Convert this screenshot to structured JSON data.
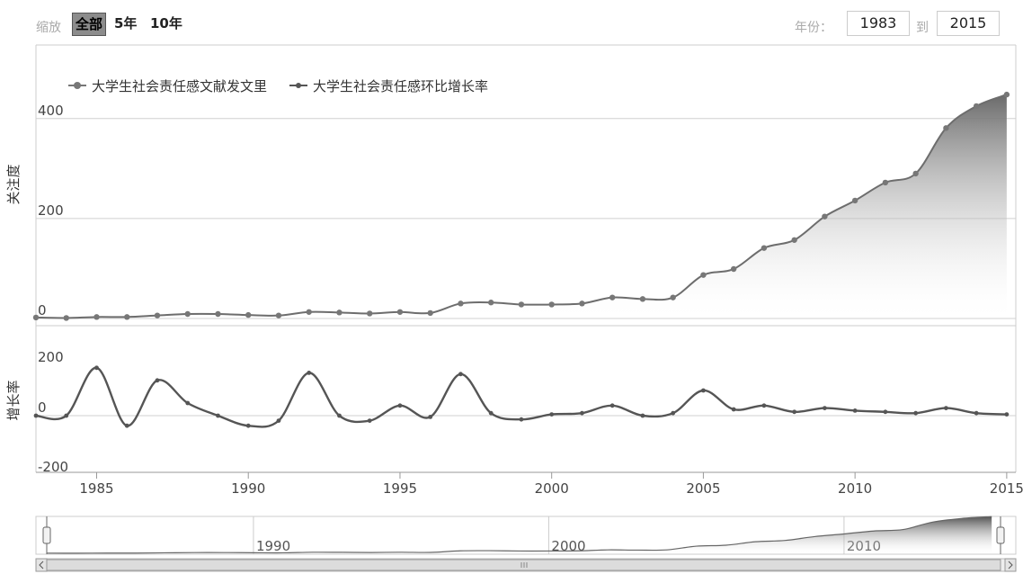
{
  "toolbar": {
    "zoom_label": "缩放",
    "zoom_options": [
      "全部",
      "5年",
      "10年"
    ],
    "range_label": "年份：",
    "range_from": "1983",
    "range_to_label": "到",
    "range_to": "2015"
  },
  "navigator": {
    "tick_labels": [
      "1990",
      "2000",
      "2010"
    ]
  },
  "chart_data": [
    {
      "type": "area",
      "ylabel": "关注度",
      "ylim": [
        0,
        450
      ],
      "yticks": [
        0,
        200,
        400
      ],
      "legend": [
        "大学生社会责任感文献发文里",
        "大学生社会责任感环比增长率"
      ],
      "legend_position": "top-left",
      "x": [
        1983,
        1984,
        1985,
        1986,
        1987,
        1988,
        1989,
        1990,
        1991,
        1992,
        1993,
        1994,
        1995,
        1996,
        1997,
        1998,
        1999,
        2000,
        2001,
        2002,
        2003,
        2004,
        2005,
        2006,
        2007,
        2008,
        2009,
        2010,
        2011,
        2012,
        2013,
        2014,
        2015
      ],
      "series": [
        {
          "name": "大学生社会责任感文献发文里",
          "values": [
            2,
            1,
            3,
            3,
            6,
            9,
            9,
            7,
            6,
            13,
            12,
            10,
            13,
            11,
            30,
            32,
            28,
            28,
            30,
            42,
            39,
            42,
            87,
            99,
            141,
            157,
            204,
            236,
            272,
            290,
            381,
            425,
            448
          ]
        }
      ]
    },
    {
      "type": "line",
      "ylabel": "增长率",
      "ylim": [
        -200,
        200
      ],
      "yticks": [
        -200,
        0,
        200
      ],
      "xlim": [
        1983,
        2015.3
      ],
      "xticks": [
        1985,
        1990,
        1995,
        2000,
        2005,
        2010,
        2015
      ],
      "x": [
        1983,
        1984,
        1985,
        1986,
        1987,
        1988,
        1989,
        1990,
        1991,
        1992,
        1993,
        1994,
        1995,
        1996,
        1997,
        1998,
        1999,
        2000,
        2001,
        2002,
        2003,
        2004,
        2005,
        2006,
        2007,
        2008,
        2009,
        2010,
        2011,
        2012,
        2013,
        2014,
        2015
      ],
      "series": [
        {
          "name": "大学生社会责任感环比增长率",
          "values": [
            0,
            0,
            190,
            -40,
            140,
            50,
            0,
            -40,
            -20,
            170,
            0,
            -20,
            40,
            -5,
            165,
            10,
            -15,
            5,
            10,
            40,
            0,
            10,
            100,
            25,
            40,
            15,
            30,
            20,
            15,
            10,
            30,
            10,
            5
          ]
        }
      ]
    }
  ]
}
